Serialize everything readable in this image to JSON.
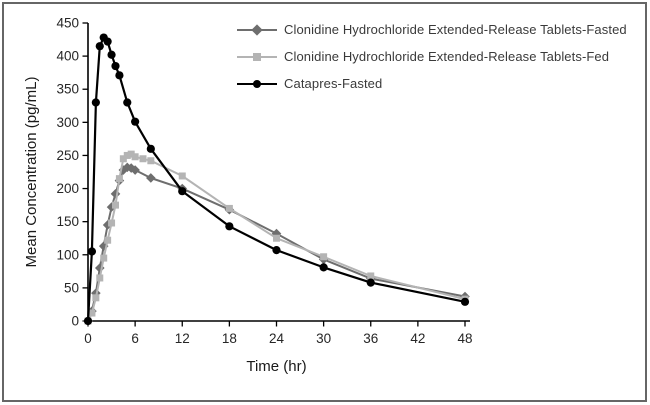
{
  "figure": {
    "border_color": "#666666",
    "background": "#ffffff"
  },
  "chart_data": {
    "type": "line",
    "title": "",
    "xlabel": "Time (hr)",
    "ylabel": "Mean Concentration (pg/mL)",
    "xlim": [
      0,
      48
    ],
    "ylim": [
      0,
      450
    ],
    "x_ticks": [
      0,
      6,
      12,
      18,
      24,
      30,
      36,
      42,
      48
    ],
    "y_ticks": [
      0,
      50,
      100,
      150,
      200,
      250,
      300,
      350,
      400,
      450
    ],
    "grid": false,
    "legend_position": "inside-top",
    "axis_color": "#000000",
    "tick_label_color": "#262626",
    "series": [
      {
        "name": "Clonidine Hydrochloride Extended-Release Tablets-Fasted",
        "marker": "diamond",
        "color": "#6e6e6e",
        "points": [
          [
            0,
            0
          ],
          [
            0.5,
            15
          ],
          [
            1,
            42
          ],
          [
            1.5,
            80
          ],
          [
            2,
            113
          ],
          [
            2.5,
            145
          ],
          [
            3,
            172
          ],
          [
            3.5,
            192
          ],
          [
            4,
            212
          ],
          [
            4.5,
            228
          ],
          [
            5,
            232
          ],
          [
            5.5,
            231
          ],
          [
            6,
            228
          ],
          [
            8,
            216
          ],
          [
            12,
            200
          ],
          [
            18,
            168
          ],
          [
            24,
            132
          ],
          [
            30,
            93
          ],
          [
            36,
            64
          ],
          [
            48,
            37
          ]
        ]
      },
      {
        "name": "Clonidine Hydrochloride Extended-Release Tablets-Fed",
        "marker": "square",
        "color": "#b4b4b4",
        "points": [
          [
            0,
            0
          ],
          [
            0.5,
            12
          ],
          [
            1,
            35
          ],
          [
            1.5,
            65
          ],
          [
            2,
            95
          ],
          [
            2.5,
            122
          ],
          [
            3,
            148
          ],
          [
            3.5,
            175
          ],
          [
            4,
            215
          ],
          [
            4.5,
            245
          ],
          [
            5,
            250
          ],
          [
            5.5,
            252
          ],
          [
            6,
            248
          ],
          [
            7,
            245
          ],
          [
            8,
            242
          ],
          [
            12,
            219
          ],
          [
            18,
            170
          ],
          [
            24,
            125
          ],
          [
            30,
            97
          ],
          [
            36,
            68
          ],
          [
            48,
            33
          ]
        ]
      },
      {
        "name": "Catapres-Fasted",
        "marker": "circle",
        "color": "#000000",
        "points": [
          [
            0,
            0
          ],
          [
            0.5,
            105
          ],
          [
            1,
            330
          ],
          [
            1.5,
            415
          ],
          [
            2,
            428
          ],
          [
            2.5,
            422
          ],
          [
            3,
            402
          ],
          [
            3.5,
            385
          ],
          [
            4,
            371
          ],
          [
            5,
            330
          ],
          [
            6,
            301
          ],
          [
            8,
            260
          ],
          [
            12,
            196
          ],
          [
            18,
            143
          ],
          [
            24,
            107
          ],
          [
            30,
            81
          ],
          [
            36,
            58
          ],
          [
            48,
            29
          ]
        ]
      }
    ]
  }
}
